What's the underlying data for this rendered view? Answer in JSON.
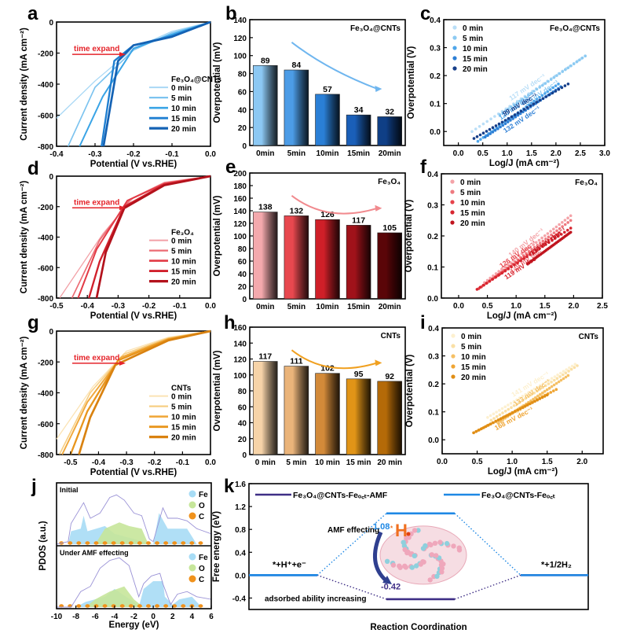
{
  "chart_data": [
    {
      "panel": "a",
      "type": "line",
      "title": "",
      "xlabel": "Potential (V vs.RHE)",
      "ylabel": "Current density (mA cm-2)",
      "xlim": [
        -0.4,
        0.0
      ],
      "ylim": [
        -800,
        0
      ],
      "xticks": [
        "-0.4",
        "-0.3",
        "-0.2",
        "-0.1",
        "0.0"
      ],
      "yticks": [
        "0",
        "-200",
        "-400",
        "-600",
        "-800"
      ],
      "legend_title": "Fe3O4@CNTs",
      "legend_position": "right",
      "annotation": "time expand",
      "series": [
        {
          "name": "0 min",
          "color": "#a9d8f5",
          "points": [
            [
              0,
              0
            ],
            [
              -0.1,
              -60
            ],
            [
              -0.2,
              -170
            ],
            [
              -0.3,
              -380
            ],
            [
              -0.4,
              -620
            ]
          ]
        },
        {
          "name": "5 min",
          "color": "#7cc3ef",
          "points": [
            [
              0,
              0
            ],
            [
              -0.1,
              -70
            ],
            [
              -0.2,
              -180
            ],
            [
              -0.3,
              -420
            ],
            [
              -0.37,
              -800
            ]
          ]
        },
        {
          "name": "10 min",
          "color": "#3aa4e6",
          "points": [
            [
              0,
              0
            ],
            [
              -0.1,
              -80
            ],
            [
              -0.2,
              -170
            ],
            [
              -0.28,
              -480
            ],
            [
              -0.34,
              -800
            ]
          ]
        },
        {
          "name": "15 min",
          "color": "#1f7fd1",
          "points": [
            [
              0,
              0
            ],
            [
              -0.1,
              -90
            ],
            [
              -0.2,
              -150
            ],
            [
              -0.25,
              -250
            ],
            [
              -0.283,
              -800
            ]
          ]
        },
        {
          "name": "20 min",
          "color": "#1462b4",
          "points": [
            [
              0,
              0
            ],
            [
              -0.1,
              -95
            ],
            [
              -0.2,
              -150
            ],
            [
              -0.24,
              -250
            ],
            [
              -0.278,
              -800
            ]
          ]
        }
      ]
    },
    {
      "panel": "b",
      "type": "bar",
      "title": "Fe3O4@CNTs",
      "xlabel": "",
      "ylabel": "Overpotential (mV)",
      "ylim": [
        0,
        140
      ],
      "yticks": [
        "0",
        "20",
        "40",
        "60",
        "80",
        "100",
        "120",
        "140"
      ],
      "categories": [
        "0min",
        "5min",
        "10min",
        "15min",
        "20min"
      ],
      "values": [
        89,
        84,
        57,
        34,
        32
      ],
      "colors": [
        "#8cc8f3",
        "#4c9ce6",
        "#2a7fd6",
        "#1a5fb8",
        "#0f3f86"
      ]
    },
    {
      "panel": "c",
      "type": "scatter",
      "title": "Fe3O4@CNTs",
      "xlabel": "Log/J (mA cm-2)",
      "ylabel": "Overpotential (V)",
      "xlim": [
        -0.3,
        3.0
      ],
      "ylim": [
        -0.05,
        0.4
      ],
      "xticks": [
        "0.0",
        "0.5",
        "1.0",
        "1.5",
        "2.0",
        "2.5",
        "3.0"
      ],
      "yticks": [
        "0.0",
        "0.1",
        "0.2",
        "0.3",
        "0.4"
      ],
      "legend_position": "top-left",
      "series": [
        {
          "name": "0 min",
          "color": "#b9def7",
          "x": [
            0.28,
            2.6
          ],
          "y": [
            0.0,
            0.27
          ],
          "label": "117 mV dec-1"
        },
        {
          "name": "5 min",
          "color": "#8ccaf2",
          "x": [
            0.85,
            2.6
          ],
          "y": [
            0.06,
            0.27
          ],
          "label": "121mV dec-1"
        },
        {
          "name": "10 min",
          "color": "#4fa6ea",
          "x": [
            0.4,
            2.05
          ],
          "y": [
            -0.035,
            0.17
          ],
          "label": "120 mV dec-1"
        },
        {
          "name": "15 min",
          "color": "#2d7fd5",
          "x": [
            0.55,
            2.1
          ],
          "y": [
            -0.02,
            0.16
          ],
          "label": "132 mV dec-1"
        },
        {
          "name": "20 min",
          "color": "#173f8a",
          "x": [
            0.32,
            2.25
          ],
          "y": [
            -0.025,
            0.17
          ],
          "label": "99 mV dec-1"
        }
      ]
    },
    {
      "panel": "d",
      "type": "line",
      "title": "",
      "xlabel": "Potential (V vs.RHE)",
      "ylabel": "Current density (mA cm-2)",
      "xlim": [
        -0.5,
        0.0
      ],
      "ylim": [
        -800,
        0
      ],
      "xticks": [
        "-0.5",
        "-0.4",
        "-0.3",
        "-0.2",
        "-0.1",
        "0.0"
      ],
      "yticks": [
        "0",
        "-200",
        "-400",
        "-600",
        "-800"
      ],
      "legend_title": "Fe3O4",
      "legend_position": "right",
      "annotation": "time expand",
      "series": [
        {
          "name": "0 min",
          "color": "#f2a0a6",
          "points": [
            [
              0,
              0
            ],
            [
              -0.15,
              -40
            ],
            [
              -0.25,
              -140
            ],
            [
              -0.35,
              -380
            ],
            [
              -0.49,
              -800
            ]
          ]
        },
        {
          "name": "5 min",
          "color": "#ec6b73",
          "points": [
            [
              0,
              0
            ],
            [
              -0.15,
              -45
            ],
            [
              -0.26,
              -150
            ],
            [
              -0.36,
              -420
            ],
            [
              -0.45,
              -800
            ]
          ]
        },
        {
          "name": "10 min",
          "color": "#e23a45",
          "points": [
            [
              0,
              0
            ],
            [
              -0.15,
              -50
            ],
            [
              -0.27,
              -160
            ],
            [
              -0.37,
              -480
            ],
            [
              -0.43,
              -800
            ]
          ]
        },
        {
          "name": "15 min",
          "color": "#d1202c",
          "points": [
            [
              0,
              0
            ],
            [
              -0.15,
              -55
            ],
            [
              -0.28,
              -200
            ],
            [
              -0.36,
              -560
            ],
            [
              -0.395,
              -800
            ]
          ]
        },
        {
          "name": "20 min",
          "color": "#b3121c",
          "points": [
            [
              0,
              0
            ],
            [
              -0.15,
              -60
            ],
            [
              -0.28,
              -210
            ],
            [
              -0.34,
              -500
            ],
            [
              -0.37,
              -800
            ]
          ]
        }
      ]
    },
    {
      "panel": "e",
      "type": "bar",
      "title": "Fe3O4",
      "xlabel": "",
      "ylabel": "Overpotential (mV)",
      "ylim": [
        0,
        200
      ],
      "yticks": [
        "0",
        "20",
        "40",
        "60",
        "80",
        "100",
        "120",
        "140",
        "160",
        "180",
        "200"
      ],
      "categories": [
        "0min",
        "5min",
        "10min",
        "15min",
        "20min"
      ],
      "values": [
        138,
        132,
        126,
        117,
        105
      ],
      "colors": [
        "#f4a9ad",
        "#e8484f",
        "#cf1f28",
        "#a0121a",
        "#5a0508"
      ]
    },
    {
      "panel": "f",
      "type": "scatter",
      "title": "Fe3O4",
      "xlabel": "Log/J (mA cm-2)",
      "ylabel": "Overpotential (V)",
      "xlim": [
        -0.3,
        2.5
      ],
      "ylim": [
        0.0,
        0.4
      ],
      "xticks": [
        "0.0",
        "0.5",
        "1.0",
        "1.5",
        "2.0",
        "2.5"
      ],
      "yticks": [
        "0.0",
        "0.1",
        "0.2",
        "0.3",
        "0.4"
      ],
      "legend_position": "top-left",
      "series": [
        {
          "name": "0 min",
          "color": "#f4a3a8",
          "x": [
            0.45,
            1.95
          ],
          "y": [
            0.05,
            0.265
          ],
          "label": "140 mV dec-1"
        },
        {
          "name": "5 min",
          "color": "#ee7a80",
          "x": [
            0.5,
            1.95
          ],
          "y": [
            0.05,
            0.25
          ],
          "label": "149 mV dec-1"
        },
        {
          "name": "10 min",
          "color": "#e6434b",
          "x": [
            0.35,
            1.75
          ],
          "y": [
            0.03,
            0.21
          ],
          "label": "126 mV dec-1"
        },
        {
          "name": "15 min",
          "color": "#d72630",
          "x": [
            0.32,
            1.95
          ],
          "y": [
            0.028,
            0.225
          ],
          "label": "119 mV dec-1"
        },
        {
          "name": "20 min",
          "color": "#c0141e",
          "x": [
            1.2,
            1.95
          ],
          "y": [
            0.11,
            0.212
          ],
          "label": "130 mV dec-1"
        }
      ]
    },
    {
      "panel": "g",
      "type": "line",
      "title": "",
      "xlabel": "Potential (V vs.RHE)",
      "ylabel": "Current density (mA cm-2)",
      "xlim": [
        -0.55,
        0.0
      ],
      "ylim": [
        -800,
        0
      ],
      "xticks": [
        "-0.5",
        "-0.4",
        "-0.3",
        "-0.2",
        "-0.1",
        "0.0"
      ],
      "yticks": [
        "0",
        "-200",
        "-400",
        "-600",
        "-800"
      ],
      "legend_title": "CNTs",
      "legend_position": "right",
      "annotation": "time expand",
      "series": [
        {
          "name": "0 min",
          "color": "#fbe3b4",
          "points": [
            [
              0,
              0
            ],
            [
              -0.15,
              -40
            ],
            [
              -0.3,
              -130
            ],
            [
              -0.42,
              -360
            ],
            [
              -0.55,
              -700
            ]
          ]
        },
        {
          "name": "5 min",
          "color": "#f7cf85",
          "points": [
            [
              0,
              0
            ],
            [
              -0.15,
              -45
            ],
            [
              -0.31,
              -150
            ],
            [
              -0.43,
              -400
            ],
            [
              -0.54,
              -800
            ]
          ]
        },
        {
          "name": "10 min",
          "color": "#f0a93e",
          "points": [
            [
              0,
              0
            ],
            [
              -0.15,
              -50
            ],
            [
              -0.32,
              -170
            ],
            [
              -0.44,
              -460
            ],
            [
              -0.53,
              -800
            ]
          ]
        },
        {
          "name": "15 min",
          "color": "#e8951c",
          "points": [
            [
              0,
              0
            ],
            [
              -0.15,
              -55
            ],
            [
              -0.33,
              -190
            ],
            [
              -0.44,
              -520
            ],
            [
              -0.5,
              -800
            ]
          ]
        },
        {
          "name": "20 min",
          "color": "#d98210",
          "points": [
            [
              0,
              0
            ],
            [
              -0.15,
              -60
            ],
            [
              -0.34,
              -220
            ],
            [
              -0.43,
              -560
            ],
            [
              -0.47,
              -800
            ]
          ]
        }
      ]
    },
    {
      "panel": "h",
      "type": "bar",
      "title": "CNTs",
      "xlabel": "",
      "ylabel": "Overpotential (mV)",
      "ylim": [
        0,
        160
      ],
      "yticks": [
        "0",
        "20",
        "40",
        "60",
        "80",
        "100",
        "120",
        "140",
        "160"
      ],
      "categories": [
        "0 min",
        "5 min",
        "10 min",
        "15 min",
        "20 min"
      ],
      "values": [
        117,
        111,
        102,
        95,
        92
      ],
      "colors": [
        "#f6d3a8",
        "#eab47a",
        "#d38a39",
        "#e19417",
        "#b46a08"
      ]
    },
    {
      "panel": "i",
      "type": "scatter",
      "title": "CNTs",
      "xlabel": "Log/J (mA cm-2)",
      "ylabel": "Overpotential (V)",
      "xlim": [
        0.0,
        2.3
      ],
      "ylim": [
        -0.05,
        0.4
      ],
      "xticks": [
        "0.0",
        "0.5",
        "1.0",
        "1.5",
        "2.0"
      ],
      "yticks": [
        "0.0",
        "0.1",
        "0.2",
        "0.3",
        "0.4"
      ],
      "legend_position": "top-left",
      "series": [
        {
          "name": "0 min",
          "color": "#fdf0cf",
          "x": [
            0.65,
            1.9
          ],
          "y": [
            0.08,
            0.27
          ],
          "label": "141 mV dec-1"
        },
        {
          "name": "5 min",
          "color": "#fae0a6",
          "x": [
            0.7,
            1.93
          ],
          "y": [
            0.07,
            0.265
          ],
          "label": "158 mV dec-1"
        },
        {
          "name": "10 min",
          "color": "#f5c066",
          "x": [
            0.8,
            1.8
          ],
          "y": [
            0.06,
            0.23
          ],
          "label": "133 mV dec-1"
        },
        {
          "name": "15 min",
          "color": "#efa534",
          "x": [
            0.45,
            1.63
          ],
          "y": [
            0.025,
            0.18
          ],
          "label": "168 mV dec-1"
        },
        {
          "name": "20 min",
          "color": "#e08e15",
          "x": [
            0.45,
            1.5
          ],
          "y": [
            0.025,
            0.16
          ],
          "label": ""
        }
      ]
    },
    {
      "panel": "j",
      "type": "area",
      "title": "",
      "xlabel": "Energy (eV)",
      "ylabel": "PDOS (a.u.)",
      "xlim": [
        -10,
        6
      ],
      "xticks": [
        "-10",
        "-8",
        "-6",
        "-4",
        "-2",
        "0",
        "2",
        "4",
        "6"
      ],
      "subpanels": [
        {
          "label": "Initial",
          "legend": [
            "Fe",
            "O",
            "C"
          ]
        },
        {
          "label": "Under AMF effecting",
          "legend": [
            "Fe",
            "O",
            "C"
          ]
        }
      ],
      "legend_colors": {
        "Fe": "#a7dcf5",
        "O": "#c6e69a",
        "C": "#f0921c",
        "Total": "#9a92d6"
      }
    },
    {
      "panel": "k",
      "type": "line",
      "title": "",
      "xlabel": "Reaction Coordination",
      "ylabel": "Free energy (eV)",
      "ylim": [
        -0.6,
        1.6
      ],
      "yticks": [
        "-0.4",
        "0.0",
        "0.4",
        "0.8",
        "1.2",
        "1.6"
      ],
      "categories": [
        "*+H+ +e-",
        "*H",
        "*+1/2H2"
      ],
      "series": [
        {
          "name": "Fe3O4@CNTs-Feoct-AMF",
          "color": "#3f2f86",
          "values": [
            0.0,
            -0.42,
            0.0
          ]
        },
        {
          "name": "Fe3O4@CNTs-Feoct",
          "color": "#1e88e5",
          "values": [
            0.0,
            1.08,
            0.0
          ]
        }
      ],
      "annotations": [
        "AMF effecting",
        "adsorbed ability increasing",
        "1.08",
        "-0.42",
        "*H"
      ],
      "state_labels": [
        "*+H⁺+e⁻",
        "*+1/2H₂"
      ]
    }
  ],
  "panel_letters": [
    "a",
    "b",
    "c",
    "d",
    "e",
    "f",
    "g",
    "h",
    "i",
    "j",
    "k"
  ]
}
